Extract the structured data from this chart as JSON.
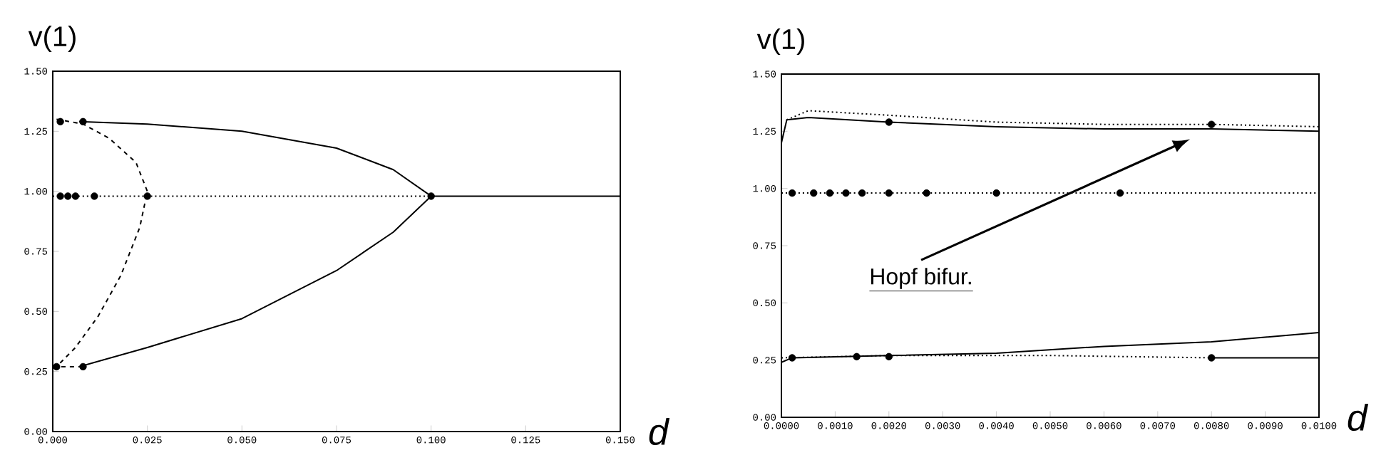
{
  "chart_data": [
    {
      "type": "line",
      "xlabel": "d",
      "ylabel": "v(1)",
      "xlim": [
        0,
        0.15
      ],
      "ylim": [
        0,
        1.5
      ],
      "xticks": [
        {
          "value": 0,
          "label": "0.000"
        },
        {
          "value": 0.025,
          "label": "0.025"
        },
        {
          "value": 0.05,
          "label": "0.050"
        },
        {
          "value": 0.075,
          "label": "0.075"
        },
        {
          "value": 0.1,
          "label": "0.100"
        },
        {
          "value": 0.125,
          "label": "0.125"
        },
        {
          "value": 0.15,
          "label": "0.150"
        }
      ],
      "yticks": [
        {
          "value": 0,
          "label": "0.00"
        },
        {
          "value": 0.25,
          "label": "0.25"
        },
        {
          "value": 0.5,
          "label": "0.50"
        },
        {
          "value": 0.75,
          "label": "0.75"
        },
        {
          "value": 1,
          "label": "1.00"
        },
        {
          "value": 1.25,
          "label": "1.25"
        },
        {
          "value": 1.5,
          "label": "1.50"
        }
      ],
      "series": [
        {
          "line_style": "solid",
          "color": "#000000",
          "x": [
            0.007,
            0.025,
            0.05,
            0.075,
            0.09,
            0.1,
            0.09,
            0.075,
            0.05,
            0.025,
            0.007
          ],
          "values": [
            1.29,
            1.28,
            1.25,
            1.18,
            1.09,
            0.98,
            0.83,
            0.67,
            0.47,
            0.35,
            0.27
          ]
        },
        {
          "line_style": "solid",
          "color": "#000000",
          "x": [
            0.1,
            0.15
          ],
          "values": [
            0.98,
            0.98
          ]
        },
        {
          "line_style": "dashed",
          "color": "#000000",
          "x": [
            0.001,
            0.008,
            0.015,
            0.022,
            0.025,
            0.023,
            0.018,
            0.012,
            0.006,
            0.001
          ],
          "values": [
            1.3,
            1.28,
            1.22,
            1.12,
            1.0,
            0.85,
            0.65,
            0.48,
            0.35,
            0.27
          ]
        },
        {
          "line_style": "dashed",
          "color": "#000000",
          "x": [
            0,
            0.007
          ],
          "values": [
            0.27,
            0.27
          ]
        },
        {
          "line_style": "dotted",
          "color": "#000000",
          "x": [
            0,
            0.1
          ],
          "values": [
            0.98,
            0.98
          ]
        },
        {
          "type": "scatter",
          "color": "#000000",
          "x": [
            0.002,
            0.008,
            0.025,
            0.1,
            0.008,
            0.001,
            0.002,
            0.004,
            0.006,
            0.011
          ],
          "values": [
            1.29,
            1.29,
            0.98,
            0.98,
            0.27,
            0.27,
            0.98,
            0.98,
            0.98,
            0.98
          ]
        }
      ]
    },
    {
      "type": "line",
      "xlabel": "d",
      "ylabel": "v(1)",
      "xlim": [
        0,
        0.01
      ],
      "ylim": [
        0,
        1.5
      ],
      "xticks": [
        {
          "value": 0,
          "label": "0.0000"
        },
        {
          "value": 0.001,
          "label": "0.0010"
        },
        {
          "value": 0.002,
          "label": "0.0020"
        },
        {
          "value": 0.003,
          "label": "0.0030"
        },
        {
          "value": 0.004,
          "label": "0.0040"
        },
        {
          "value": 0.005,
          "label": "0.0050"
        },
        {
          "value": 0.006,
          "label": "0.0060"
        },
        {
          "value": 0.007,
          "label": "0.0070"
        },
        {
          "value": 0.008,
          "label": "0.0080"
        },
        {
          "value": 0.009,
          "label": "0.0090"
        },
        {
          "value": 0.01,
          "label": "0.0100"
        }
      ],
      "yticks": [
        {
          "value": 0,
          "label": "0.00"
        },
        {
          "value": 0.25,
          "label": "0.25"
        },
        {
          "value": 0.5,
          "label": "0.50"
        },
        {
          "value": 0.75,
          "label": "0.75"
        },
        {
          "value": 1,
          "label": "1.00"
        },
        {
          "value": 1.25,
          "label": "1.25"
        },
        {
          "value": 1.5,
          "label": "1.50"
        }
      ],
      "annotations": [
        "Hopf bifur."
      ],
      "series": [
        {
          "line_style": "solid",
          "color": "#000000",
          "x": [
            0,
            0.0001,
            0.0005,
            0.002,
            0.004,
            0.006,
            0.008,
            0.01
          ],
          "values": [
            1.2,
            1.3,
            1.31,
            1.29,
            1.27,
            1.26,
            1.26,
            1.25
          ]
        },
        {
          "line_style": "dotted",
          "color": "#000000",
          "x": [
            0.0001,
            0.0005,
            0.002,
            0.004,
            0.006,
            0.008,
            0.01
          ],
          "values": [
            1.3,
            1.34,
            1.32,
            1.29,
            1.28,
            1.28,
            1.27
          ]
        },
        {
          "line_style": "dotted",
          "color": "#000000",
          "x": [
            0,
            0.01
          ],
          "values": [
            0.98,
            0.98
          ]
        },
        {
          "line_style": "solid",
          "color": "#000000",
          "x": [
            0,
            0.0002,
            0.002,
            0.004,
            0.006,
            0.008,
            0.01
          ],
          "values": [
            0.24,
            0.26,
            0.27,
            0.28,
            0.31,
            0.33,
            0.37
          ]
        },
        {
          "line_style": "dotted",
          "color": "#000000",
          "x": [
            0,
            0.002,
            0.005,
            0.008
          ],
          "values": [
            0.26,
            0.27,
            0.27,
            0.26
          ]
        },
        {
          "line_style": "solid",
          "color": "#000000",
          "x": [
            0.008,
            0.01
          ],
          "values": [
            0.26,
            0.26
          ]
        },
        {
          "type": "scatter",
          "color": "#000000",
          "x": [
            0.002,
            0.008,
            0.0002,
            0.0014,
            0.002,
            0.008,
            0.0002,
            0.0006,
            0.0009,
            0.0012,
            0.0015,
            0.002,
            0.0027,
            0.004,
            0.0063
          ],
          "values": [
            1.29,
            1.28,
            0.26,
            0.265,
            0.265,
            0.26,
            0.98,
            0.98,
            0.98,
            0.98,
            0.98,
            0.98,
            0.98,
            0.98,
            0.98
          ]
        }
      ]
    }
  ]
}
